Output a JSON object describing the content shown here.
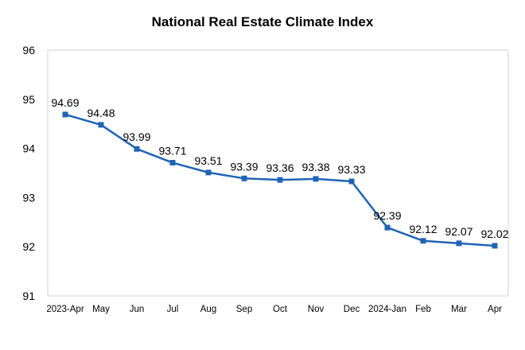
{
  "chart_data": {
    "type": "line",
    "title": "National Real Estate Climate Index",
    "xlabel": "",
    "ylabel": "",
    "categories": [
      "2023-Apr",
      "May",
      "Jun",
      "Jul",
      "Aug",
      "Sep",
      "Oct",
      "Nov",
      "Dec",
      "2024-Jan",
      "Feb",
      "Mar",
      "Apr"
    ],
    "series": [
      {
        "values": [
          94.69,
          94.48,
          93.99,
          93.71,
          93.51,
          93.39,
          93.36,
          93.38,
          93.33,
          92.39,
          92.12,
          92.07,
          92.02
        ]
      }
    ],
    "y_ticks": [
      "91",
      "92",
      "93",
      "94",
      "95",
      "96"
    ],
    "ylim": [
      91,
      96
    ],
    "grid": false,
    "data_labels": [
      "94.69",
      "94.48",
      "93.99",
      "93.71",
      "93.51",
      "93.39",
      "93.36",
      "93.38",
      "93.33",
      "92.39",
      "92.12",
      "92.07",
      "92.02"
    ],
    "line_color": "#2064B4",
    "marker": "square"
  }
}
